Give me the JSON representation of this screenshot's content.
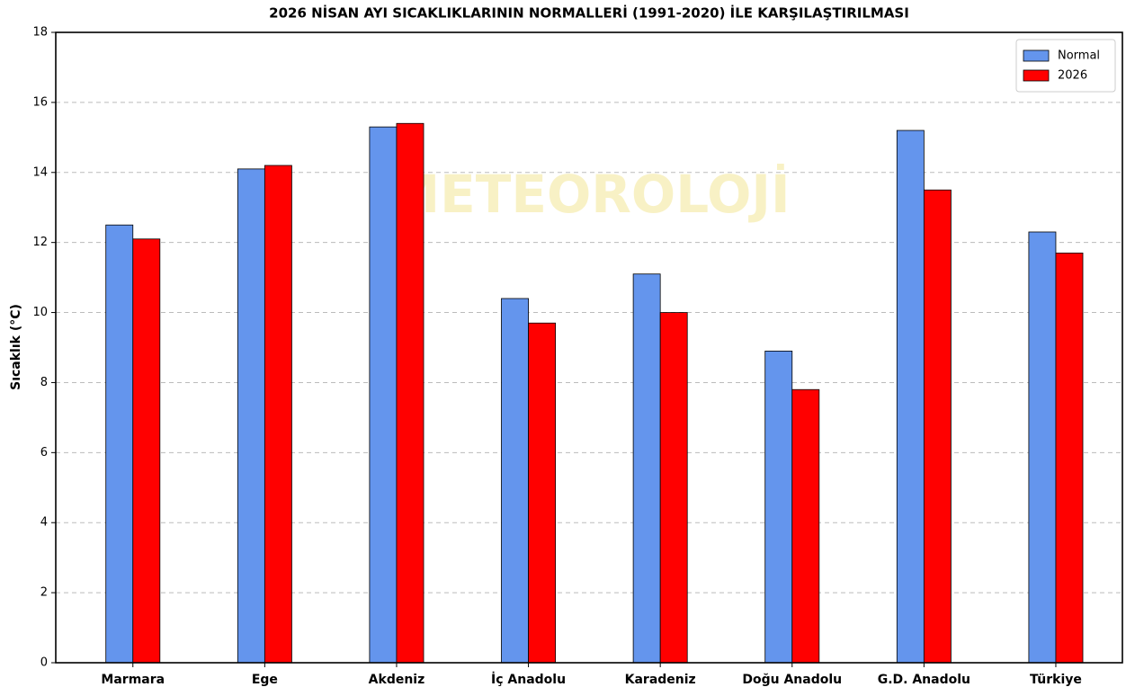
{
  "chart_data": {
    "type": "bar",
    "title": "2026 NİSAN AYI SICAKLIKLARININ NORMALLERİ (1991-2020) İLE KARŞILAŞTIRILMASI",
    "y_label": "Sıcaklık (°C)",
    "watermark": "METEOROLOJİ",
    "categories": [
      "Marmara",
      "Ege",
      "Akdeniz",
      "İç Anadolu",
      "Karadeniz",
      "Doğu Anadolu",
      "G.D. Anadolu",
      "Türkiye"
    ],
    "series": [
      {
        "name": "Normal",
        "color": "#6495ed",
        "values": [
          12.5,
          14.1,
          15.3,
          10.4,
          11.1,
          8.9,
          15.2,
          12.3
        ]
      },
      {
        "name": "2026",
        "color": "#ff0000",
        "values": [
          12.1,
          14.2,
          15.4,
          9.7,
          10.0,
          7.8,
          13.5,
          11.7
        ]
      }
    ],
    "ylim": [
      0,
      18
    ],
    "yticks": [
      0,
      2,
      4,
      6,
      8,
      10,
      12,
      14,
      16,
      18
    ],
    "grid": true,
    "legend": "upper right"
  }
}
